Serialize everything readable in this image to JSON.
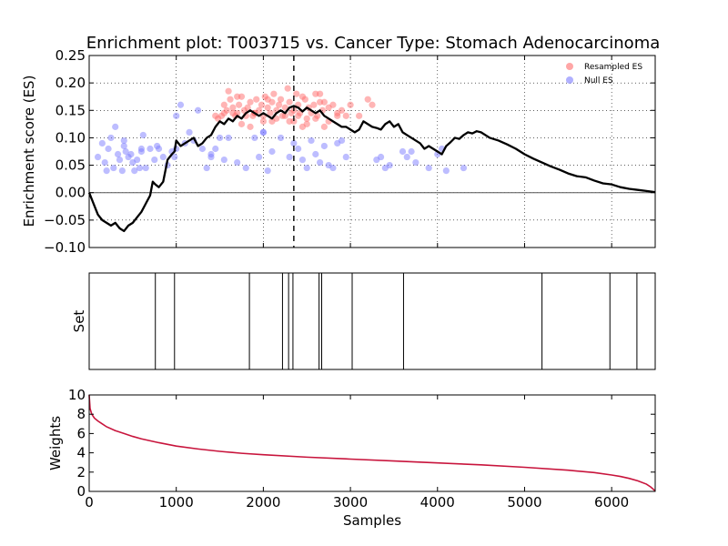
{
  "chart_data": [
    {
      "type": "line",
      "title": "Enrichment plot: T003715 vs. Cancer Type: Stomach Adenocarcinoma",
      "xlabel": "",
      "ylabel": "Enrichment score (ES)",
      "xlim": [
        0,
        6500
      ],
      "ylim": [
        -0.1,
        0.25
      ],
      "yticks": [
        "−0.10",
        "−0.05",
        "0.00",
        "0.05",
        "0.10",
        "0.15",
        "0.20",
        "0.25"
      ],
      "ytick_values": [
        -0.1,
        -0.05,
        0.0,
        0.05,
        0.1,
        0.15,
        0.2,
        0.25
      ],
      "xgrid_values": [
        1000,
        2000,
        3000,
        4000,
        5000,
        6000
      ],
      "grid": true,
      "legend_position": "top-right",
      "legend": [
        {
          "label": "Resampled ES",
          "color": "#ff6b6b"
        },
        {
          "label": "Null ES",
          "color": "#7b7bff"
        }
      ],
      "es_peak_x": 2350,
      "colors": {
        "es_line": "#000000",
        "resampled": "#ff6b6b",
        "null": "#7b7bff",
        "zero_line": "#555555"
      },
      "series": [
        {
          "name": "Running ES",
          "x": [
            0,
            50,
            100,
            150,
            200,
            250,
            300,
            350,
            400,
            450,
            500,
            550,
            600,
            650,
            700,
            730,
            760,
            800,
            850,
            900,
            950,
            980,
            1000,
            1050,
            1100,
            1150,
            1200,
            1250,
            1300,
            1350,
            1400,
            1450,
            1500,
            1550,
            1600,
            1650,
            1700,
            1750,
            1800,
            1850,
            1900,
            1950,
            2000,
            2050,
            2100,
            2150,
            2200,
            2250,
            2300,
            2350,
            2400,
            2450,
            2500,
            2550,
            2600,
            2650,
            2700,
            2750,
            2800,
            2850,
            2900,
            2950,
            3000,
            3050,
            3100,
            3150,
            3200,
            3250,
            3300,
            3350,
            3400,
            3450,
            3500,
            3550,
            3600,
            3650,
            3700,
            3750,
            3800,
            3850,
            3900,
            3950,
            4000,
            4050,
            4100,
            4150,
            4200,
            4250,
            4300,
            4350,
            4400,
            4450,
            4500,
            4600,
            4700,
            4800,
            4900,
            5000,
            5100,
            5200,
            5300,
            5400,
            5500,
            5600,
            5700,
            5800,
            5900,
            6000,
            6100,
            6200,
            6300,
            6400,
            6500
          ],
          "values": [
            0.0,
            -0.02,
            -0.04,
            -0.05,
            -0.055,
            -0.06,
            -0.055,
            -0.065,
            -0.07,
            -0.06,
            -0.055,
            -0.045,
            -0.035,
            -0.02,
            -0.005,
            0.02,
            0.015,
            0.01,
            0.02,
            0.06,
            0.07,
            0.075,
            0.095,
            0.085,
            0.09,
            0.095,
            0.1,
            0.085,
            0.09,
            0.1,
            0.105,
            0.12,
            0.13,
            0.125,
            0.135,
            0.13,
            0.14,
            0.135,
            0.145,
            0.15,
            0.145,
            0.14,
            0.145,
            0.14,
            0.135,
            0.145,
            0.15,
            0.145,
            0.155,
            0.158,
            0.155,
            0.148,
            0.155,
            0.15,
            0.145,
            0.15,
            0.14,
            0.135,
            0.13,
            0.125,
            0.12,
            0.12,
            0.115,
            0.11,
            0.115,
            0.13,
            0.125,
            0.12,
            0.118,
            0.115,
            0.125,
            0.13,
            0.12,
            0.125,
            0.11,
            0.105,
            0.1,
            0.095,
            0.09,
            0.08,
            0.085,
            0.08,
            0.075,
            0.07,
            0.085,
            0.092,
            0.1,
            0.098,
            0.105,
            0.11,
            0.108,
            0.112,
            0.11,
            0.1,
            0.095,
            0.088,
            0.08,
            0.07,
            0.062,
            0.055,
            0.048,
            0.042,
            0.035,
            0.03,
            0.028,
            0.022,
            0.017,
            0.015,
            0.01,
            0.007,
            0.005,
            0.003,
            0.001
          ]
        },
        {
          "name": "Resampled ES",
          "x": [
            1450,
            1480,
            1520,
            1550,
            1580,
            1600,
            1620,
            1650,
            1680,
            1700,
            1720,
            1750,
            1780,
            1800,
            1820,
            1850,
            1880,
            1900,
            1920,
            1950,
            1980,
            2000,
            2020,
            2050,
            2080,
            2100,
            2120,
            2150,
            2180,
            2200,
            2220,
            2250,
            2280,
            2300,
            2320,
            2350,
            2380,
            2400,
            2420,
            2450,
            2480,
            2500,
            2520,
            2550,
            2580,
            2600,
            2620,
            2650,
            2680,
            2700,
            2750,
            2800,
            2850,
            2900,
            2950,
            3000,
            3100,
            3200,
            3250,
            1550,
            1700,
            1900,
            2100,
            2250,
            2350,
            2450,
            2600,
            2750,
            1650,
            1850,
            2000,
            2150,
            2300,
            2500,
            2650,
            2850,
            1750,
            2050,
            2400,
            2700
          ],
          "values": [
            0.14,
            0.135,
            0.14,
            0.145,
            0.15,
            0.185,
            0.17,
            0.155,
            0.14,
            0.145,
            0.16,
            0.175,
            0.15,
            0.14,
            0.155,
            0.165,
            0.14,
            0.145,
            0.17,
            0.15,
            0.16,
            0.14,
            0.175,
            0.155,
            0.145,
            0.165,
            0.18,
            0.15,
            0.16,
            0.17,
            0.14,
            0.155,
            0.19,
            0.165,
            0.145,
            0.15,
            0.18,
            0.16,
            0.145,
            0.175,
            0.17,
            0.135,
            0.155,
            0.145,
            0.16,
            0.18,
            0.14,
            0.18,
            0.15,
            0.165,
            0.13,
            0.16,
            0.145,
            0.15,
            0.14,
            0.16,
            0.14,
            0.17,
            0.16,
            0.16,
            0.175,
            0.145,
            0.13,
            0.14,
            0.13,
            0.12,
            0.135,
            0.155,
            0.145,
            0.12,
            0.13,
            0.135,
            0.13,
            0.125,
            0.165,
            0.14,
            0.125,
            0.17,
            0.14,
            0.12
          ]
        },
        {
          "name": "Null ES",
          "x": [
            100,
            150,
            180,
            200,
            220,
            250,
            280,
            300,
            330,
            350,
            380,
            400,
            420,
            450,
            480,
            500,
            520,
            550,
            580,
            600,
            620,
            650,
            700,
            750,
            780,
            800,
            850,
            900,
            950,
            980,
            1000,
            1050,
            1100,
            1150,
            1200,
            1250,
            1300,
            1350,
            1400,
            1450,
            1500,
            1550,
            1600,
            1700,
            1800,
            1900,
            1950,
            2000,
            2050,
            2100,
            2200,
            2300,
            2350,
            2400,
            2450,
            2500,
            2550,
            2600,
            2650,
            2700,
            2750,
            2800,
            2850,
            2900,
            2950,
            3300,
            3350,
            3400,
            3450,
            3600,
            3650,
            3700,
            3750,
            3900,
            4000,
            4050,
            4100,
            4300,
            400,
            600,
            1000,
            1400,
            2000
          ],
          "values": [
            0.065,
            0.09,
            0.055,
            0.04,
            0.08,
            0.1,
            0.045,
            0.12,
            0.07,
            0.06,
            0.04,
            0.085,
            0.075,
            0.065,
            0.07,
            0.055,
            0.04,
            0.06,
            0.045,
            0.08,
            0.105,
            0.045,
            0.08,
            0.06,
            0.085,
            0.08,
            0.065,
            0.05,
            0.075,
            0.065,
            0.14,
            0.16,
            0.09,
            0.11,
            0.095,
            0.15,
            0.08,
            0.045,
            0.07,
            0.08,
            0.1,
            0.06,
            0.1,
            0.055,
            0.045,
            0.1,
            0.065,
            0.11,
            0.04,
            0.075,
            0.1,
            0.065,
            0.09,
            0.08,
            0.06,
            0.045,
            0.095,
            0.07,
            0.055,
            0.085,
            0.05,
            0.045,
            0.09,
            0.095,
            0.065,
            0.06,
            0.065,
            0.045,
            0.05,
            0.075,
            0.065,
            0.075,
            0.055,
            0.045,
            0.07,
            0.08,
            0.04,
            0.045,
            0.095,
            0.075,
            0.08,
            0.065,
            0.11
          ]
        }
      ]
    },
    {
      "type": "bar",
      "title": "",
      "xlabel": "",
      "ylabel": "Set",
      "xlim": [
        0,
        6500
      ],
      "set_positions": [
        760,
        980,
        1840,
        2220,
        2290,
        2340,
        2640,
        2670,
        3020,
        3610,
        5200,
        5980,
        6290
      ]
    },
    {
      "type": "line",
      "title": "",
      "xlabel": "Samples",
      "ylabel": "Weights",
      "xlim": [
        0,
        6500
      ],
      "ylim": [
        0,
        10
      ],
      "xticks": [
        "0",
        "1000",
        "2000",
        "3000",
        "4000",
        "5000",
        "6000"
      ],
      "xtick_values": [
        0,
        1000,
        2000,
        3000,
        4000,
        5000,
        6000
      ],
      "yticks": [
        "0",
        "2",
        "4",
        "6",
        "8",
        "10"
      ],
      "ytick_values": [
        0,
        2,
        4,
        6,
        8,
        10
      ],
      "colors": {
        "weights_line": "#c8143c"
      },
      "series": [
        {
          "name": "Weights",
          "x": [
            0,
            10,
            30,
            60,
            100,
            150,
            200,
            300,
            400,
            500,
            600,
            800,
            1000,
            1250,
            1500,
            1750,
            2000,
            2500,
            3000,
            3500,
            4000,
            4500,
            5000,
            5500,
            5800,
            6000,
            6100,
            6200,
            6300,
            6400,
            6450,
            6500
          ],
          "values": [
            10,
            8.6,
            8.0,
            7.6,
            7.3,
            7.0,
            6.7,
            6.3,
            6.0,
            5.7,
            5.45,
            5.05,
            4.7,
            4.4,
            4.15,
            3.95,
            3.8,
            3.55,
            3.35,
            3.15,
            2.95,
            2.75,
            2.5,
            2.2,
            1.95,
            1.7,
            1.55,
            1.35,
            1.1,
            0.75,
            0.45,
            0.05
          ]
        }
      ]
    }
  ]
}
